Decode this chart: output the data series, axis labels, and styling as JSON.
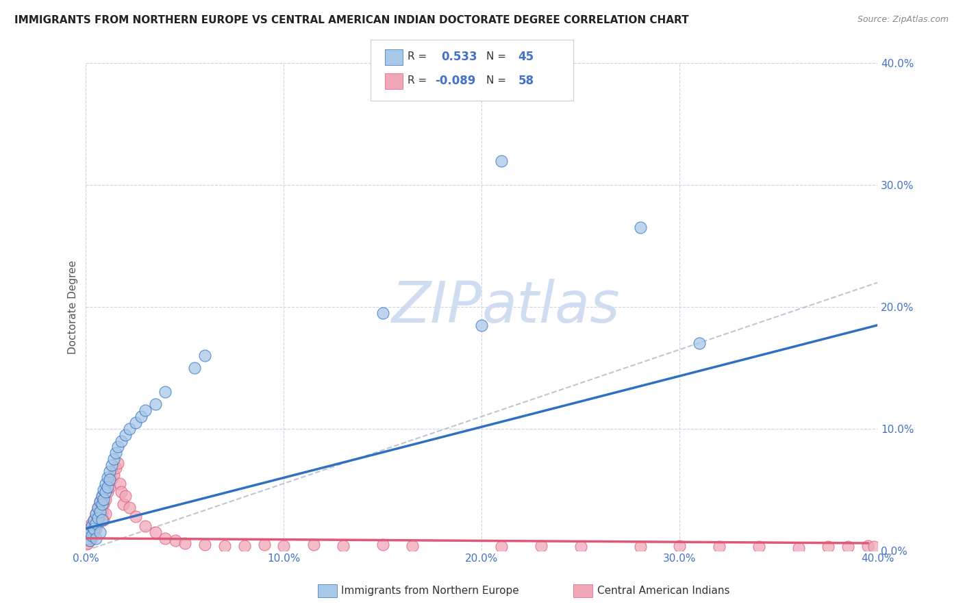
{
  "title": "IMMIGRANTS FROM NORTHERN EUROPE VS CENTRAL AMERICAN INDIAN DOCTORATE DEGREE CORRELATION CHART",
  "source": "Source: ZipAtlas.com",
  "ylabel": "Doctorate Degree",
  "xlim": [
    0.0,
    0.4
  ],
  "ylim": [
    0.0,
    0.4
  ],
  "color_blue": "#a8c8e8",
  "color_blue_line": "#3070c0",
  "color_pink": "#f0a8b8",
  "color_pink_line": "#e05878",
  "color_dashed_line": "#b0b8c8",
  "background_color": "#ffffff",
  "grid_color": "#c8d4e4",
  "watermark_color": "#d0ddf0",
  "blue_x": [
    0.001,
    0.002,
    0.002,
    0.003,
    0.003,
    0.004,
    0.004,
    0.005,
    0.005,
    0.005,
    0.006,
    0.006,
    0.007,
    0.007,
    0.007,
    0.008,
    0.008,
    0.008,
    0.009,
    0.009,
    0.01,
    0.01,
    0.011,
    0.011,
    0.012,
    0.012,
    0.013,
    0.014,
    0.015,
    0.016,
    0.018,
    0.02,
    0.022,
    0.025,
    0.028,
    0.03,
    0.035,
    0.04,
    0.055,
    0.06,
    0.15,
    0.2,
    0.21,
    0.28,
    0.31
  ],
  "blue_y": [
    0.01,
    0.015,
    0.008,
    0.02,
    0.012,
    0.025,
    0.018,
    0.03,
    0.022,
    0.01,
    0.035,
    0.027,
    0.04,
    0.032,
    0.015,
    0.045,
    0.038,
    0.025,
    0.05,
    0.042,
    0.055,
    0.048,
    0.06,
    0.052,
    0.065,
    0.058,
    0.07,
    0.075,
    0.08,
    0.085,
    0.09,
    0.095,
    0.1,
    0.105,
    0.11,
    0.115,
    0.12,
    0.13,
    0.15,
    0.16,
    0.195,
    0.185,
    0.32,
    0.265,
    0.17
  ],
  "pink_x": [
    0.001,
    0.001,
    0.002,
    0.002,
    0.003,
    0.003,
    0.004,
    0.004,
    0.005,
    0.005,
    0.006,
    0.006,
    0.007,
    0.007,
    0.008,
    0.008,
    0.009,
    0.009,
    0.01,
    0.01,
    0.011,
    0.012,
    0.013,
    0.014,
    0.015,
    0.016,
    0.017,
    0.018,
    0.019,
    0.02,
    0.022,
    0.025,
    0.03,
    0.035,
    0.04,
    0.045,
    0.05,
    0.06,
    0.07,
    0.08,
    0.09,
    0.1,
    0.115,
    0.13,
    0.15,
    0.165,
    0.21,
    0.23,
    0.25,
    0.28,
    0.3,
    0.32,
    0.34,
    0.36,
    0.375,
    0.385,
    0.395,
    0.398
  ],
  "pink_y": [
    0.012,
    0.006,
    0.018,
    0.008,
    0.022,
    0.01,
    0.025,
    0.015,
    0.03,
    0.018,
    0.035,
    0.022,
    0.04,
    0.028,
    0.045,
    0.032,
    0.038,
    0.025,
    0.042,
    0.03,
    0.048,
    0.052,
    0.058,
    0.062,
    0.068,
    0.072,
    0.055,
    0.048,
    0.038,
    0.045,
    0.035,
    0.028,
    0.02,
    0.015,
    0.01,
    0.008,
    0.006,
    0.005,
    0.004,
    0.004,
    0.005,
    0.004,
    0.005,
    0.004,
    0.005,
    0.004,
    0.003,
    0.004,
    0.003,
    0.003,
    0.004,
    0.003,
    0.003,
    0.002,
    0.003,
    0.003,
    0.004,
    0.003
  ],
  "blue_line_x": [
    0.0,
    0.4
  ],
  "blue_line_y": [
    0.018,
    0.185
  ],
  "pink_line_x": [
    0.0,
    0.395
  ],
  "pink_line_y": [
    0.01,
    0.006
  ],
  "dash_line_x": [
    0.0,
    0.4
  ],
  "dash_line_y": [
    0.0,
    0.22
  ]
}
